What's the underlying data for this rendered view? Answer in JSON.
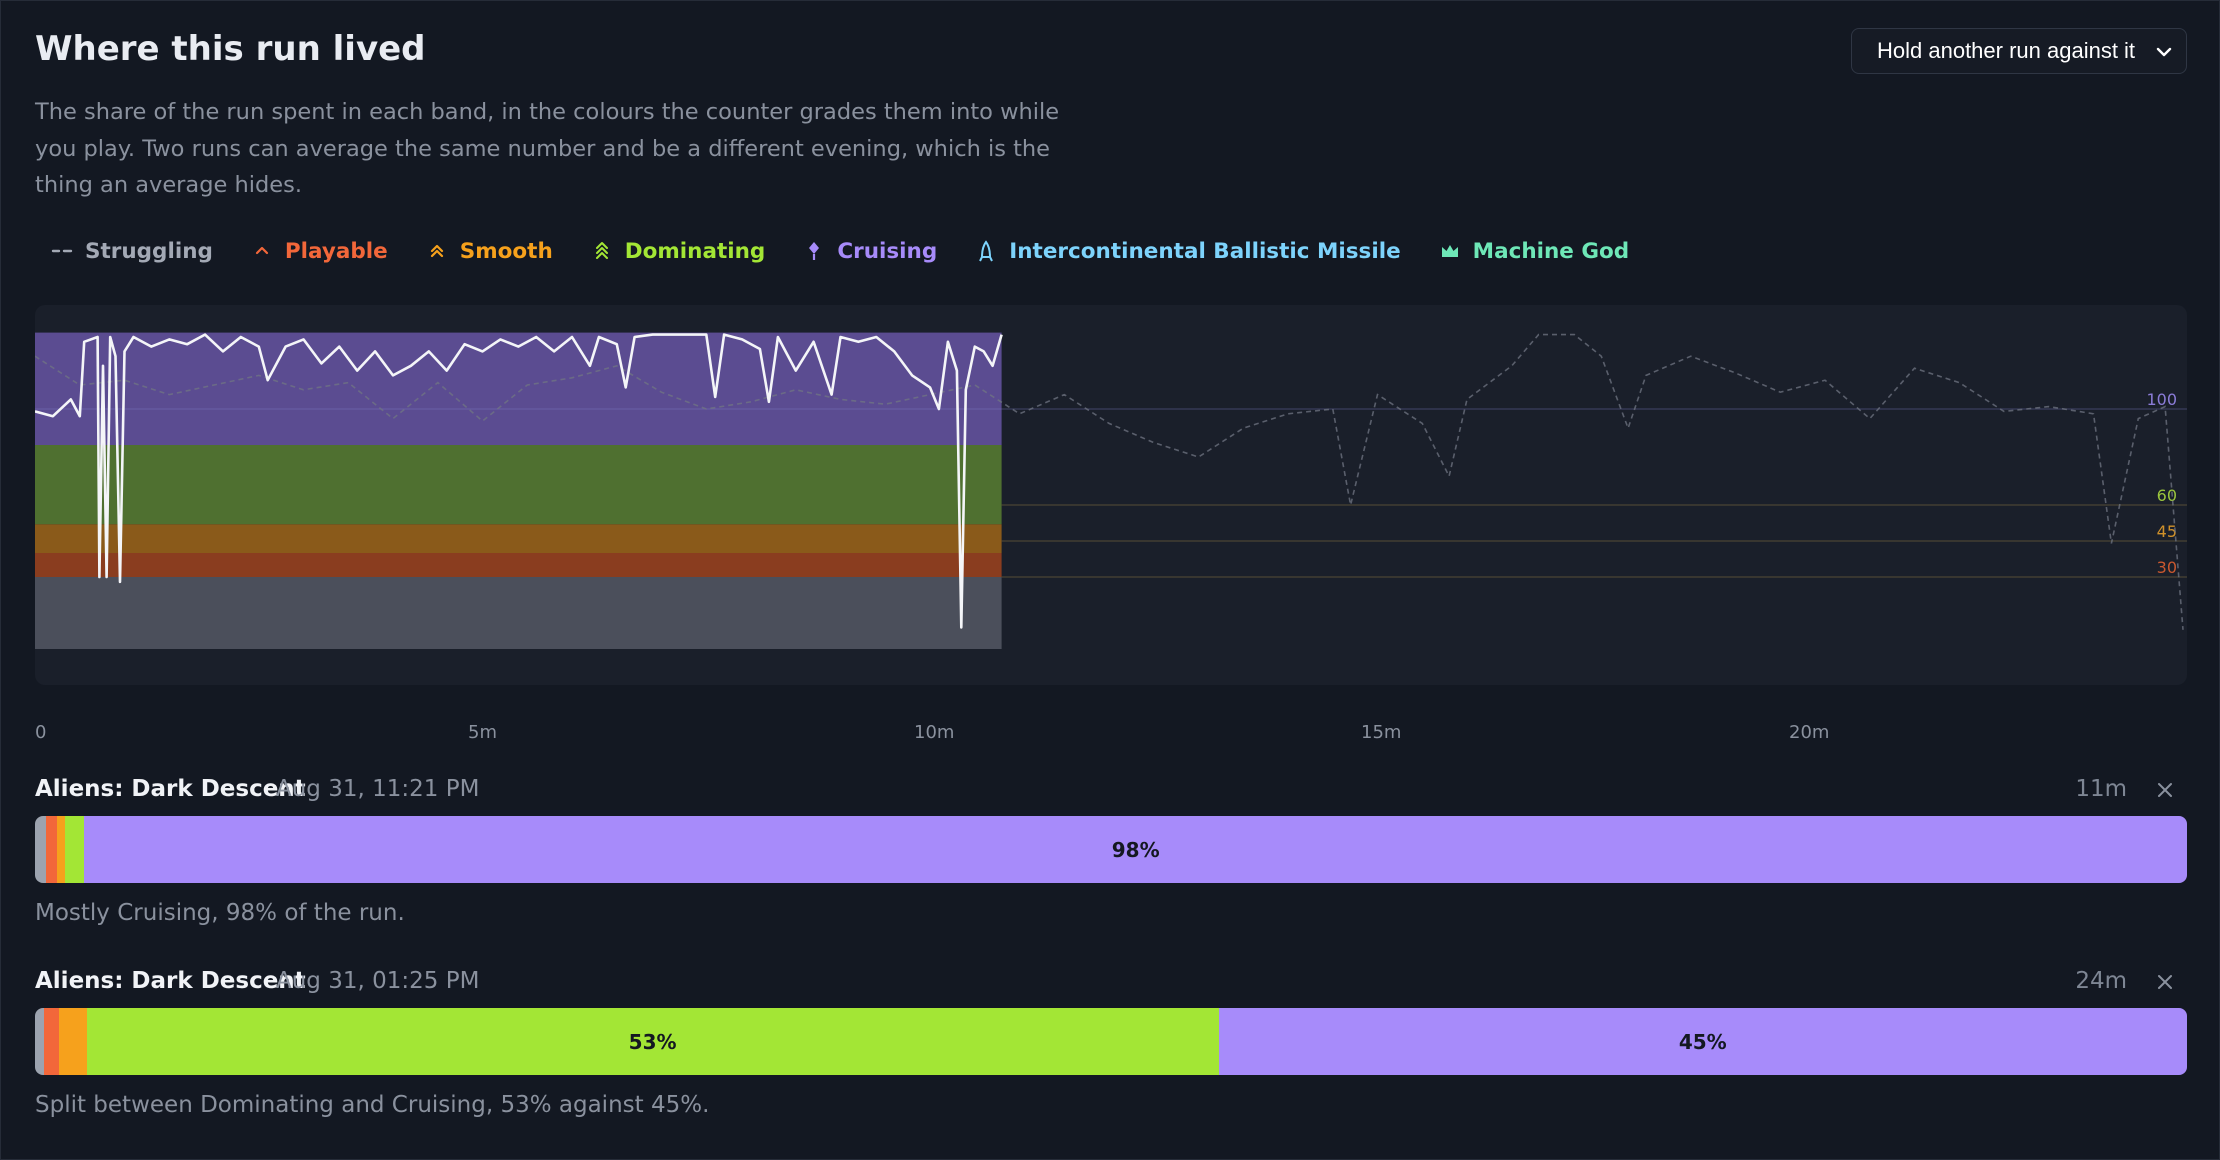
{
  "section": {
    "title": "Where this run lived",
    "description": "The share of the run spent in each band, in the colours the counter grades them into while you play. Two runs can average the same number and be a different evening, which is the thing an average hides.",
    "compare_select_value": "Hold another run against it"
  },
  "legend": [
    {
      "label": "Struggling",
      "color": "#a3a9b5",
      "icon": "dash-icon"
    },
    {
      "label": "Playable",
      "color": "#f2673a",
      "icon": "chevron-up-icon"
    },
    {
      "label": "Smooth",
      "color": "#f6a11c",
      "icon": "double-chevron-up-icon"
    },
    {
      "label": "Dominating",
      "color": "#a3e635",
      "icon": "triple-chevron-up-icon"
    },
    {
      "label": "Cruising",
      "color": "#a78bfa",
      "icon": "rocket-icon"
    },
    {
      "label": "Intercontinental Ballistic Missile",
      "color": "#7dd3fc",
      "icon": "missile-icon"
    },
    {
      "label": "Machine God",
      "color": "#6ee7b7",
      "icon": "crown-icon"
    }
  ],
  "chart_data": {
    "type": "line",
    "x_unit": "minutes",
    "x_ticks": [
      "0",
      "5m",
      "10m",
      "15m",
      "20m"
    ],
    "x_range": [
      0,
      24
    ],
    "y_range": [
      0,
      140
    ],
    "threshold_labels": [
      {
        "value": 100,
        "label": "100",
        "color": "#8b7cd8"
      },
      {
        "value": 60,
        "label": "60",
        "color": "#9bc53d"
      },
      {
        "value": 45,
        "label": "45",
        "color": "#d0912a"
      },
      {
        "value": 30,
        "label": "30",
        "color": "#c9582f"
      }
    ],
    "bands": [
      {
        "name": "Struggling",
        "from": 0,
        "to": 30,
        "color": "#4b4f5b"
      },
      {
        "name": "Playable",
        "from": 30,
        "to": 40,
        "color": "#8a3d1f"
      },
      {
        "name": "Smooth",
        "from": 40,
        "to": 52,
        "color": "#8a5a1a"
      },
      {
        "name": "Dominating",
        "from": 52,
        "to": 85,
        "color": "#4f7030"
      },
      {
        "name": "Cruising",
        "from": 85,
        "to": 140,
        "color": "#5b4c91"
      }
    ],
    "series": [
      {
        "role": "primary run",
        "x_end": 10.8,
        "points": [
          [
            0,
            99
          ],
          [
            0.2,
            97
          ],
          [
            0.4,
            104
          ],
          [
            0.5,
            97
          ],
          [
            0.55,
            128
          ],
          [
            0.7,
            130
          ],
          [
            0.72,
            30
          ],
          [
            0.76,
            118
          ],
          [
            0.8,
            30
          ],
          [
            0.84,
            130
          ],
          [
            0.9,
            122
          ],
          [
            0.95,
            28
          ],
          [
            1.0,
            124
          ],
          [
            1.1,
            130
          ],
          [
            1.3,
            126
          ],
          [
            1.5,
            129
          ],
          [
            1.7,
            127
          ],
          [
            1.9,
            131
          ],
          [
            2.1,
            124
          ],
          [
            2.3,
            130
          ],
          [
            2.5,
            126
          ],
          [
            2.6,
            112
          ],
          [
            2.8,
            126
          ],
          [
            3.0,
            129
          ],
          [
            3.2,
            119
          ],
          [
            3.4,
            126
          ],
          [
            3.6,
            116
          ],
          [
            3.8,
            124
          ],
          [
            4.0,
            114
          ],
          [
            4.2,
            118
          ],
          [
            4.4,
            124
          ],
          [
            4.6,
            116
          ],
          [
            4.8,
            127
          ],
          [
            5.0,
            124
          ],
          [
            5.2,
            129
          ],
          [
            5.4,
            126
          ],
          [
            5.6,
            130
          ],
          [
            5.8,
            124
          ],
          [
            6.0,
            130
          ],
          [
            6.2,
            118
          ],
          [
            6.3,
            130
          ],
          [
            6.5,
            127
          ],
          [
            6.6,
            109
          ],
          [
            6.7,
            130
          ],
          [
            6.9,
            131
          ],
          [
            7.1,
            131
          ],
          [
            7.3,
            131
          ],
          [
            7.5,
            131
          ],
          [
            7.6,
            105
          ],
          [
            7.7,
            131
          ],
          [
            7.9,
            129
          ],
          [
            8.1,
            125
          ],
          [
            8.2,
            103
          ],
          [
            8.3,
            130
          ],
          [
            8.5,
            116
          ],
          [
            8.7,
            128
          ],
          [
            8.9,
            106
          ],
          [
            9.0,
            130
          ],
          [
            9.2,
            128
          ],
          [
            9.4,
            130
          ],
          [
            9.6,
            124
          ],
          [
            9.8,
            114
          ],
          [
            10.0,
            109
          ],
          [
            10.1,
            100
          ],
          [
            10.2,
            128
          ],
          [
            10.3,
            116
          ],
          [
            10.35,
            9
          ],
          [
            10.4,
            108
          ],
          [
            10.5,
            126
          ],
          [
            10.6,
            124
          ],
          [
            10.7,
            118
          ],
          [
            10.8,
            131
          ]
        ]
      },
      {
        "role": "compared run",
        "x_end": 24,
        "points": [
          [
            0,
            122
          ],
          [
            0.5,
            110
          ],
          [
            1,
            112
          ],
          [
            1.5,
            106
          ],
          [
            2,
            110
          ],
          [
            2.5,
            114
          ],
          [
            3,
            108
          ],
          [
            3.5,
            111
          ],
          [
            4,
            96
          ],
          [
            4.5,
            111
          ],
          [
            5,
            95
          ],
          [
            5.5,
            110
          ],
          [
            6,
            113
          ],
          [
            6.5,
            118
          ],
          [
            7,
            107
          ],
          [
            7.5,
            100
          ],
          [
            8,
            103
          ],
          [
            8.5,
            108
          ],
          [
            9,
            104
          ],
          [
            9.5,
            102
          ],
          [
            10,
            106
          ],
          [
            10.5,
            110
          ],
          [
            11,
            98
          ],
          [
            11.5,
            106
          ],
          [
            12,
            94
          ],
          [
            12.5,
            86
          ],
          [
            13,
            80
          ],
          [
            13.5,
            92
          ],
          [
            14,
            98
          ],
          [
            14.5,
            100
          ],
          [
            14.7,
            60
          ],
          [
            15,
            106
          ],
          [
            15.5,
            94
          ],
          [
            15.8,
            72
          ],
          [
            16,
            104
          ],
          [
            16.5,
            118
          ],
          [
            16.8,
            131
          ],
          [
            17.2,
            131
          ],
          [
            17.5,
            122
          ],
          [
            17.8,
            92
          ],
          [
            18,
            114
          ],
          [
            18.5,
            122
          ],
          [
            19,
            115
          ],
          [
            19.5,
            107
          ],
          [
            20,
            112
          ],
          [
            20.5,
            96
          ],
          [
            21,
            117
          ],
          [
            21.5,
            111
          ],
          [
            22,
            99
          ],
          [
            22.5,
            101
          ],
          [
            23,
            98
          ],
          [
            23.2,
            44
          ],
          [
            23.5,
            96
          ],
          [
            23.8,
            101
          ],
          [
            24,
            8
          ]
        ]
      }
    ]
  },
  "runs": [
    {
      "game": "Aliens: Dark Descent",
      "date": "Aug 31, 11:21 PM",
      "duration": "11m",
      "segments": [
        {
          "band": "Struggling",
          "share": 0.5,
          "color": "#9ca3af"
        },
        {
          "band": "Playable",
          "share": 0.5,
          "color": "#f2673a"
        },
        {
          "band": "Smooth",
          "share": 0.4,
          "color": "#f6a11c"
        },
        {
          "band": "Dominating",
          "share": 0.9,
          "color": "#a3e635"
        },
        {
          "band": "Cruising",
          "share": 97.7,
          "color": "#a78bfa",
          "label": "98%"
        }
      ],
      "summary": "Mostly Cruising, 98% of the run."
    },
    {
      "game": "Aliens: Dark Descent",
      "date": "Aug 31, 01:25 PM",
      "duration": "24m",
      "segments": [
        {
          "band": "Struggling",
          "share": 0.4,
          "color": "#9ca3af"
        },
        {
          "band": "Playable",
          "share": 0.7,
          "color": "#f2673a"
        },
        {
          "band": "Smooth",
          "share": 1.3,
          "color": "#f6a11c"
        },
        {
          "band": "Dominating",
          "share": 52.6,
          "color": "#a3e635",
          "label": "53%"
        },
        {
          "band": "Cruising",
          "share": 45.0,
          "color": "#a78bfa",
          "label": "45%"
        }
      ],
      "summary": "Split between Dominating and Cruising, 53% against 45%."
    }
  ]
}
